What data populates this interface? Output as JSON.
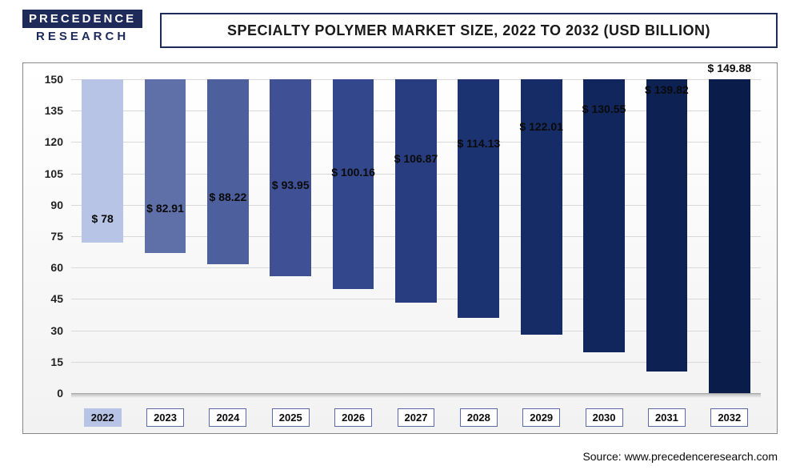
{
  "logo": {
    "top": "PRECEDENCE",
    "bottom": "RESEARCH"
  },
  "chart": {
    "type": "bar",
    "title": "SPECIALTY POLYMER MARKET SIZE, 2022 TO 2032 (USD BILLION)",
    "categories": [
      "2022",
      "2023",
      "2024",
      "2025",
      "2026",
      "2027",
      "2028",
      "2029",
      "2030",
      "2031",
      "2032"
    ],
    "values": [
      78,
      82.91,
      88.22,
      93.95,
      100.16,
      106.87,
      114.13,
      122.01,
      130.55,
      139.82,
      149.88
    ],
    "value_labels": [
      "$ 78",
      "$ 82.91",
      "$ 88.22",
      "$ 93.95",
      "$ 100.16",
      "$ 106.87",
      "$ 114.13",
      "$ 122.01",
      "$ 130.55",
      "$ 139.82",
      "$ 149.88"
    ],
    "bar_colors": [
      "#b8c4e6",
      "#5f6fa8",
      "#4e5f9e",
      "#3f5194",
      "#33478c",
      "#283d80",
      "#1c3372",
      "#162c66",
      "#11265c",
      "#0d2152",
      "#0a1d4a"
    ],
    "ylim": [
      0,
      150
    ],
    "ytick_step": 15,
    "yticks": [
      0,
      15,
      30,
      45,
      60,
      75,
      90,
      105,
      120,
      135,
      150
    ],
    "background_color": "#ffffff",
    "grid_color": "#d9d9d9",
    "bar_width": 0.66,
    "title_fontsize": 18,
    "label_fontsize": 14,
    "highlight_index": 0
  },
  "source": "Source: www.precedenceresearch.com"
}
